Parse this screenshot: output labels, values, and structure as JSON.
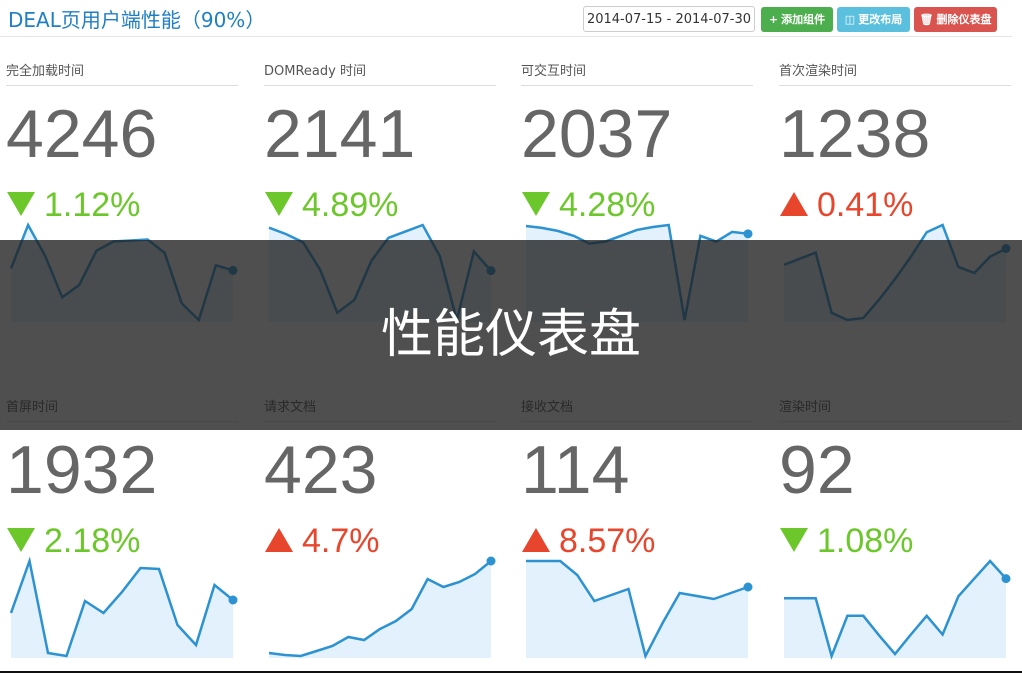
{
  "header": {
    "title": "DEAL页用户端性能（90%）",
    "date_range": "2014-07-15 - 2014-07-30",
    "buttons": [
      "添加组件",
      "更改布局",
      "删除仪表盘"
    ]
  },
  "overlay": "性能仪表盘",
  "widgets": [
    {
      "title": "完全加载时间",
      "value": 4246,
      "change": "1.12%",
      "trend": "down",
      "spark": [
        50,
        92,
        62,
        22,
        34,
        67,
        76,
        77,
        78,
        65,
        16,
        0,
        53,
        48
      ]
    },
    {
      "title": "DOMReady 时间",
      "value": 2141,
      "change": "4.89%",
      "trend": "down",
      "spark": [
        101,
        94,
        85,
        55,
        8,
        22,
        65,
        90,
        97,
        104,
        70,
        0,
        75,
        54
      ]
    },
    {
      "title": "可交互时间",
      "value": 2037,
      "change": "4.28%",
      "trend": "down",
      "spark": [
        98,
        96,
        93,
        88,
        80,
        82,
        88,
        94,
        97,
        99,
        2,
        88,
        82,
        92,
        90
      ]
    },
    {
      "title": "首次渲染时间",
      "value": 1238,
      "change": "0.41%",
      "trend": "up",
      "spark": [
        54,
        60,
        66,
        7,
        0,
        2,
        20,
        40,
        62,
        86,
        93,
        52,
        46,
        62,
        70
      ]
    },
    {
      "title": "首屏时间",
      "value": 1932,
      "change": "2.18%",
      "trend": "down",
      "spark": [
        45,
        97,
        5,
        2,
        57,
        45,
        66,
        90,
        89,
        33,
        13,
        73,
        58
      ]
    },
    {
      "title": "请求文档",
      "value": 423,
      "change": "4.7%",
      "trend": "up",
      "spark": [
        6,
        4,
        3,
        8,
        13,
        22,
        19,
        30,
        38,
        50,
        80,
        72,
        77,
        85,
        98
      ]
    },
    {
      "title": "接收文档",
      "value": 114,
      "change": "8.57%",
      "trend": "up",
      "spark": [
        97,
        97,
        97,
        83,
        57,
        63,
        69,
        2,
        35,
        65,
        62,
        59,
        65,
        71
      ]
    },
    {
      "title": "渲染时间",
      "value": 92,
      "change": "1.08%",
      "trend": "down",
      "spark": [
        60,
        60,
        60,
        1,
        42,
        42,
        22,
        3,
        23,
        42,
        23,
        62,
        80,
        98,
        80
      ]
    }
  ]
}
